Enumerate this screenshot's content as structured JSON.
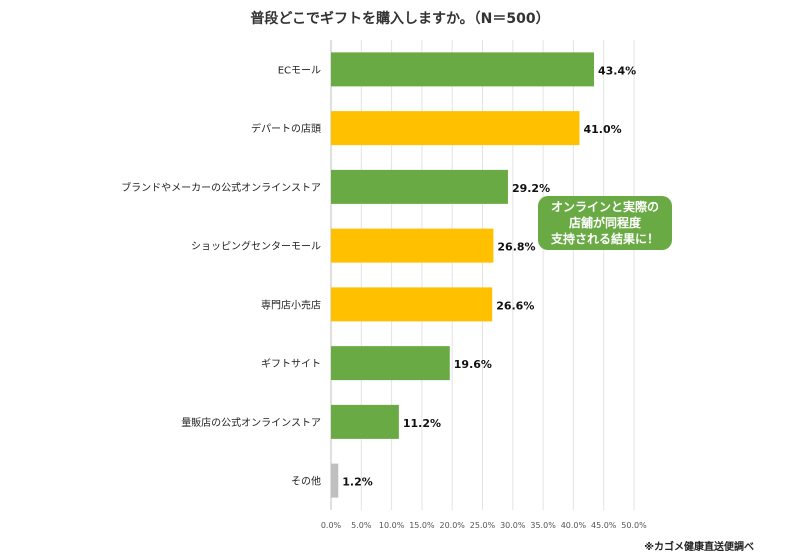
{
  "chart_data": {
    "type": "bar",
    "orientation": "horizontal",
    "title": "普段どこでギフトを購入しますか。（N＝500）",
    "categories": [
      "ECモール",
      "デパートの店頭",
      "ブランドやメーカーの公式オンラインストア",
      "ショッピングセンターモール",
      "専門店小売店",
      "ギフトサイト",
      "量販店の公式オンラインストア",
      "その他"
    ],
    "values": [
      43.4,
      41.0,
      29.2,
      26.8,
      26.6,
      19.6,
      11.2,
      1.2
    ],
    "value_labels": [
      "43.4%",
      "41.0%",
      "29.2%",
      "26.8%",
      "26.6%",
      "19.6%",
      "11.2%",
      "1.2%"
    ],
    "bar_colors": [
      "#6aaa45",
      "#ffc000",
      "#6aaa45",
      "#ffc000",
      "#ffc000",
      "#6aaa45",
      "#6aaa45",
      "#bfbfbf"
    ],
    "xlim": [
      0,
      50
    ],
    "x_ticks": [
      "0.0%",
      "5.0%",
      "10.0%",
      "15.0%",
      "20.0%",
      "25.0%",
      "30.0%",
      "35.0%",
      "40.0%",
      "45.0%",
      "50.0%"
    ],
    "grid": true,
    "annotation": "オンラインと実際の\n店舗が同程度\n支持される結果に！",
    "source": "※カゴメ健康直送便調べ"
  }
}
